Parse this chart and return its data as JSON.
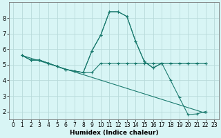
{
  "xlabel": "Humidex (Indice chaleur)",
  "bg_color": "#d8f5f5",
  "grid_color": "#b8dada",
  "line_color": "#1a7a6e",
  "xlim": [
    -0.5,
    23.5
  ],
  "ylim": [
    1.5,
    9.0
  ],
  "yticks": [
    2,
    3,
    4,
    5,
    6,
    7,
    8
  ],
  "xticks": [
    0,
    1,
    2,
    3,
    4,
    5,
    6,
    7,
    8,
    9,
    10,
    11,
    12,
    13,
    14,
    15,
    16,
    17,
    18,
    19,
    20,
    21,
    22,
    23
  ],
  "line1_x": [
    1,
    2,
    3,
    4,
    5,
    6,
    7,
    8,
    9,
    10,
    11,
    12,
    13,
    14,
    15,
    16,
    17,
    18,
    19,
    20,
    21,
    22
  ],
  "line1_y": [
    5.6,
    5.3,
    5.3,
    5.1,
    4.9,
    4.7,
    4.6,
    4.5,
    5.9,
    6.9,
    8.4,
    8.4,
    8.1,
    6.5,
    5.2,
    4.8,
    5.1,
    4.0,
    2.9,
    1.8,
    1.85,
    2.0
  ],
  "line2_x": [
    1,
    2,
    3,
    4,
    5,
    6,
    7,
    8,
    9,
    10,
    11,
    12,
    13,
    14,
    15,
    16,
    17,
    18,
    19,
    20,
    21,
    22
  ],
  "line2_y": [
    5.6,
    5.3,
    5.3,
    5.1,
    4.9,
    4.7,
    4.6,
    4.5,
    5.9,
    6.9,
    8.4,
    8.4,
    8.1,
    6.5,
    5.2,
    4.8,
    5.1,
    5.1,
    5.1,
    5.1,
    5.1,
    5.1
  ],
  "line3_x": [
    1,
    2,
    3,
    4,
    5,
    6,
    7,
    8,
    9,
    10,
    11,
    12,
    13,
    14,
    15,
    16,
    17,
    18,
    19,
    20,
    21,
    22
  ],
  "line3_y": [
    5.6,
    5.3,
    5.3,
    5.1,
    4.9,
    4.7,
    4.6,
    4.5,
    4.5,
    5.1,
    5.1,
    5.1,
    5.1,
    5.1,
    5.1,
    5.1,
    5.1,
    5.1,
    5.1,
    5.1,
    5.1,
    5.1
  ],
  "line4_x": [
    1,
    22
  ],
  "line4_y": [
    5.6,
    1.9
  ]
}
